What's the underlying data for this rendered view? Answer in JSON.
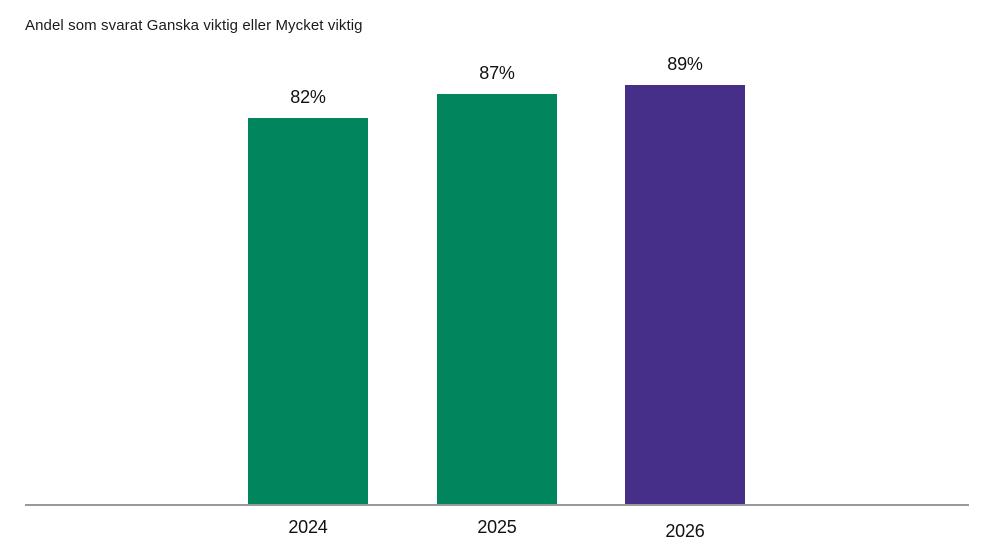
{
  "chart_data": {
    "type": "bar",
    "title": "Andel som svarat Ganska viktig eller Mycket viktig",
    "categories": [
      "2024",
      "2025",
      "2026"
    ],
    "values": [
      82,
      87,
      89
    ],
    "value_labels": [
      "82%",
      "87%",
      "89%"
    ],
    "bar_colors": [
      "#00855C",
      "#00855C",
      "#462F88"
    ],
    "xlabel": "",
    "ylabel": "",
    "ylim": [
      0,
      100
    ],
    "grid": false,
    "legend": "none",
    "axis_line_color": "#999999",
    "text_color": "#111111",
    "background": "#ffffff"
  }
}
